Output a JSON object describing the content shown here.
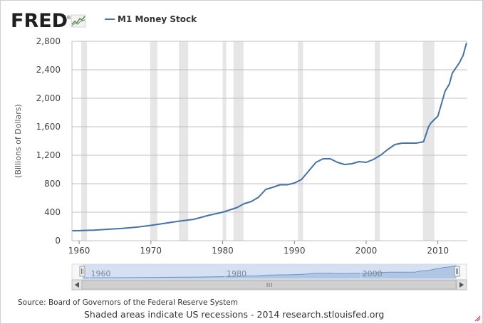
{
  "logo": {
    "text": "FRED",
    "trademark": "®"
  },
  "colors": {
    "line": "#4572a7",
    "recession": "#e6e6e6",
    "grid": "#c0c0c0",
    "navigator_fill": "#c9d9ef",
    "navigator_line": "#6f94c7"
  },
  "footer": {
    "source": "Source: Board of Governors of the Federal Reserve System",
    "note": "Shaded areas indicate US recessions - 2014 research.stlouisfed.org"
  },
  "chart_data": {
    "type": "line",
    "title": "",
    "xlabel": "",
    "ylabel": "(Billions of Dollars)",
    "legend": {
      "placement": "top-left",
      "entries": [
        "M1 Money Stock"
      ]
    },
    "grid": true,
    "xlim": [
      1959,
      2014.1
    ],
    "ylim": [
      0,
      2800
    ],
    "x_ticks": [
      1960,
      1970,
      1980,
      1990,
      2000,
      2010
    ],
    "y_ticks": [
      0,
      400,
      800,
      1200,
      1600,
      2000,
      2400,
      2800
    ],
    "y_tick_labels": [
      "0",
      "400",
      "800",
      "1,200",
      "1,600",
      "2,000",
      "2,400",
      "2,800"
    ],
    "recessions": [
      [
        1960.3,
        1961.1
      ],
      [
        1969.9,
        1970.9
      ],
      [
        1973.9,
        1975.2
      ],
      [
        1980.0,
        1980.5
      ],
      [
        1981.5,
        1982.9
      ],
      [
        1990.5,
        1991.2
      ],
      [
        2001.2,
        2001.9
      ],
      [
        2007.9,
        2009.5
      ]
    ],
    "series": [
      {
        "name": "M1 Money Stock",
        "x": [
          1959,
          1960,
          1962,
          1964,
          1966,
          1968,
          1970,
          1972,
          1974,
          1976,
          1978,
          1980,
          1982,
          1983,
          1984,
          1985,
          1986,
          1987,
          1988,
          1989,
          1990,
          1991,
          1992,
          1993,
          1994,
          1995,
          1996,
          1997,
          1998,
          1999,
          2000,
          2001,
          2002,
          2003,
          2004,
          2005,
          2006,
          2007,
          2008,
          2008.7,
          2009,
          2010,
          2011,
          2011.6,
          2012,
          2013,
          2013.5,
          2014
        ],
        "values": [
          140,
          141,
          148,
          160,
          172,
          190,
          215,
          245,
          275,
          300,
          355,
          400,
          465,
          520,
          550,
          610,
          720,
          750,
          785,
          785,
          810,
          860,
          980,
          1100,
          1150,
          1150,
          1100,
          1070,
          1080,
          1110,
          1100,
          1140,
          1200,
          1280,
          1350,
          1370,
          1370,
          1370,
          1390,
          1600,
          1650,
          1750,
          2100,
          2200,
          2350,
          2500,
          2600,
          2780
        ]
      }
    ],
    "navigator": {
      "x_ticks": [
        1960,
        1980,
        2000
      ]
    }
  }
}
